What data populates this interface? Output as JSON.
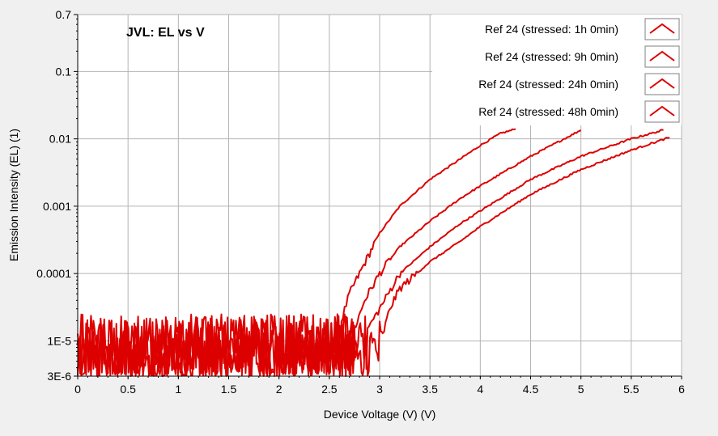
{
  "chart_data": {
    "type": "line",
    "title": "JVL: EL vs V",
    "xlabel": "Device Voltage (V) (V)",
    "ylabel": "Emission Intensity (EL) (1)",
    "xlim": [
      0,
      6
    ],
    "ylim": [
      3e-06,
      0.7
    ],
    "yscale": "log",
    "grid": true,
    "legend_position": "top-right",
    "x_ticks": [
      0,
      0.5,
      1,
      1.5,
      2,
      2.5,
      3,
      3.5,
      4,
      4.5,
      5,
      5.5,
      6
    ],
    "x_tick_labels": [
      "0",
      "0.5",
      "1",
      "1.5",
      "2",
      "2.5",
      "3",
      "3.5",
      "4",
      "4.5",
      "5",
      "5.5",
      "6"
    ],
    "y_ticks": [
      3e-06,
      1e-05,
      0.0001,
      0.001,
      0.01,
      0.1,
      0.7
    ],
    "y_tick_labels": [
      "3E-6",
      "1E-5",
      "0.0001",
      "0.001",
      "0.01",
      "0.1",
      "0.7"
    ],
    "series_color": "#dd0000",
    "noise_floor": {
      "min": 3e-06,
      "max": 2.5e-05
    },
    "series": [
      {
        "name": "Ref 24 (stressed: 1h 0min)",
        "noise_until": 2.62,
        "x": [
          2.62,
          2.7,
          2.8,
          2.9,
          3.0,
          3.2,
          3.5,
          3.8,
          4.0,
          4.2,
          4.35
        ],
        "y": [
          2e-05,
          5e-05,
          0.0001,
          0.0002,
          0.0004,
          0.001,
          0.0025,
          0.005,
          0.008,
          0.012,
          0.014
        ]
      },
      {
        "name": "Ref 24 (stressed: 9h 0min)",
        "noise_until": 2.75,
        "x": [
          2.75,
          2.85,
          3.0,
          3.2,
          3.5,
          3.8,
          4.0,
          4.5,
          5.0
        ],
        "y": [
          1.5e-05,
          4e-05,
          0.0001,
          0.00025,
          0.0006,
          0.0013,
          0.002,
          0.0055,
          0.0135
        ]
      },
      {
        "name": "Ref 24 (stressed: 24h 0min)",
        "noise_until": 2.88,
        "x": [
          2.88,
          3.0,
          3.2,
          3.5,
          3.8,
          4.0,
          4.5,
          5.0,
          5.5,
          5.82
        ],
        "y": [
          1.5e-05,
          3e-05,
          0.0001,
          0.00025,
          0.00055,
          0.00085,
          0.0025,
          0.0055,
          0.01,
          0.0135
        ]
      },
      {
        "name": "Ref 24 (stressed: 48h 0min)",
        "noise_until": 3.03,
        "x": [
          3.03,
          3.1,
          3.2,
          3.5,
          3.8,
          4.0,
          4.5,
          5.0,
          5.5,
          5.88
        ],
        "y": [
          1.2e-05,
          3e-05,
          6e-05,
          0.00015,
          0.0003,
          0.0005,
          0.0015,
          0.0035,
          0.0068,
          0.0105
        ]
      }
    ]
  }
}
